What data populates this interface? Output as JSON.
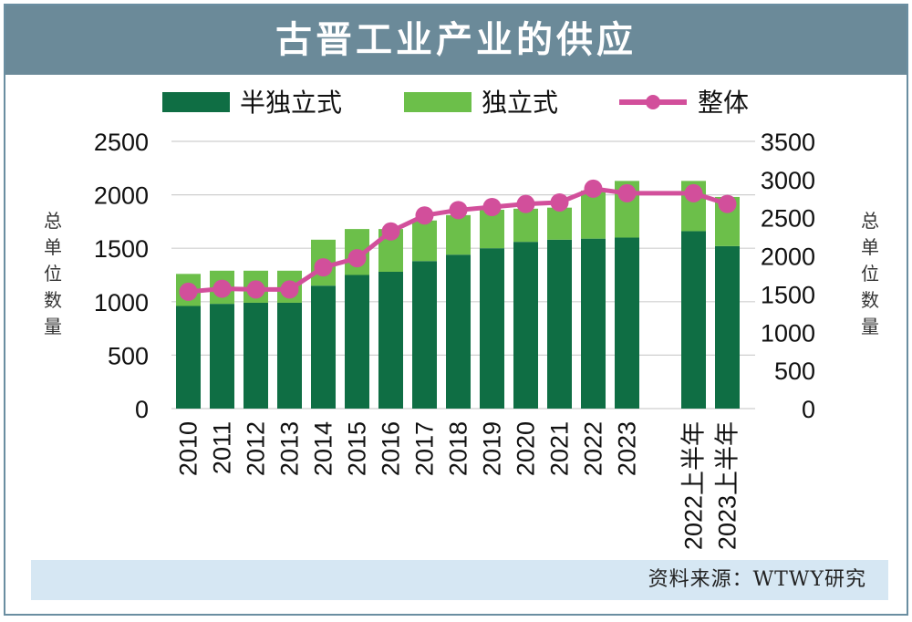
{
  "header": {
    "title": "古晋工业产业的供应"
  },
  "source": "资料来源：WTWY研究",
  "colors": {
    "semi_detached": "#0f6e44",
    "detached": "#6cbf4a",
    "total": "#d24f9b",
    "title_bg": "#6b8a99",
    "source_bg": "#d6e7f3"
  },
  "chart_data": {
    "type": "bar",
    "stacked": true,
    "categories": [
      "2010",
      "2011",
      "2012",
      "2013",
      "2014",
      "2015",
      "2016",
      "2017",
      "2018",
      "2019",
      "2020",
      "2021",
      "2022",
      "2023",
      "2022上半年",
      "2023上半年"
    ],
    "series": [
      {
        "name": "半独立式",
        "type": "bar",
        "axis": "left",
        "color": "#0f6e44",
        "values": [
          960,
          980,
          990,
          990,
          1150,
          1250,
          1280,
          1380,
          1440,
          1500,
          1560,
          1580,
          1590,
          1600,
          1660,
          1520
        ]
      },
      {
        "name": "独立式",
        "type": "bar",
        "axis": "left",
        "color": "#6cbf4a",
        "values": [
          300,
          310,
          300,
          300,
          430,
          430,
          400,
          380,
          370,
          360,
          310,
          300,
          450,
          530,
          470,
          460
        ]
      },
      {
        "name": "整体",
        "type": "line",
        "axis": "right",
        "color": "#d24f9b",
        "values": [
          1530,
          1570,
          1560,
          1560,
          1850,
          1970,
          2320,
          2530,
          2600,
          2640,
          2680,
          2700,
          2880,
          2820,
          2820,
          2680
        ]
      }
    ],
    "yleft": {
      "label": "总单位数量",
      "range": [
        0,
        2500
      ],
      "ticks": [
        0,
        500,
        1000,
        1500,
        2000,
        2500
      ]
    },
    "yright": {
      "label": "总单位数量",
      "range": [
        0,
        3500
      ],
      "ticks": [
        0,
        500,
        1000,
        1500,
        2000,
        2500,
        3000,
        3500
      ]
    },
    "grid": true,
    "legend": "top"
  }
}
